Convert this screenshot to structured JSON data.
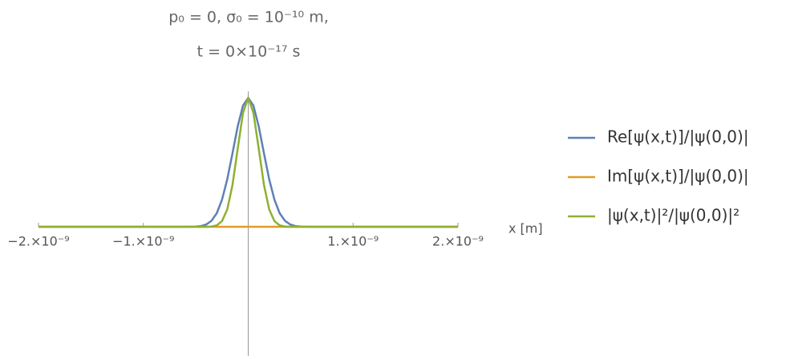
{
  "chart_data": {
    "type": "line",
    "title": [
      "p₀ = 0,  σ₀ = 10⁻¹⁰ m,",
      "t = 0×10⁻¹⁷ s"
    ],
    "x_label": "x [m]",
    "x": [
      -2e-09,
      -1e-09,
      -6e-10,
      -5e-10,
      -4.5e-10,
      -4e-10,
      -3.5e-10,
      -3e-10,
      -2.5e-10,
      -2e-10,
      -1.5e-10,
      -1e-10,
      -5e-11,
      0,
      5e-11,
      1e-10,
      1.5e-10,
      2e-10,
      2.5e-10,
      3e-10,
      3.5e-10,
      4e-10,
      4.5e-10,
      5e-10,
      6e-10,
      1e-09,
      2e-09
    ],
    "series": [
      {
        "name": "Re[ψ(x,t)]/|ψ(0,0)|",
        "color": "#5e81b5",
        "values": [
          0,
          0,
          0,
          0.002,
          0.006,
          0.018,
          0.047,
          0.105,
          0.21,
          0.368,
          0.57,
          0.779,
          0.939,
          1,
          0.939,
          0.779,
          0.57,
          0.368,
          0.21,
          0.105,
          0.047,
          0.018,
          0.006,
          0.002,
          0,
          0,
          0
        ]
      },
      {
        "name": "Im[ψ(x,t)]/|ψ(0,0)|",
        "color": "#e19c24",
        "values": [
          0,
          0,
          0,
          0,
          0,
          0,
          0,
          0,
          0,
          0,
          0,
          0,
          0,
          0,
          0,
          0,
          0,
          0,
          0,
          0,
          0,
          0,
          0,
          0,
          0,
          0,
          0
        ]
      },
      {
        "name": "|ψ(x,t)|²/|ψ(0,0)|²",
        "color": "#8fb032",
        "values": [
          0,
          0,
          0,
          0,
          0,
          0,
          0.002,
          0.011,
          0.044,
          0.135,
          0.325,
          0.607,
          0.882,
          1,
          0.882,
          0.607,
          0.325,
          0.135,
          0.044,
          0.011,
          0.002,
          0,
          0,
          0,
          0,
          0,
          0
        ]
      }
    ],
    "xlim": [
      -2e-09,
      2e-09
    ],
    "xticks": [
      {
        "value": -2e-09,
        "label": "−2.×10⁻⁹"
      },
      {
        "value": -1e-09,
        "label": "−1.×10⁻⁹"
      },
      {
        "value": 1e-09,
        "label": "1.×10⁻⁹"
      },
      {
        "value": 2e-09,
        "label": "2.×10⁻⁹"
      }
    ],
    "ylim": [
      -1.0,
      1.05
    ],
    "legend": "right"
  }
}
